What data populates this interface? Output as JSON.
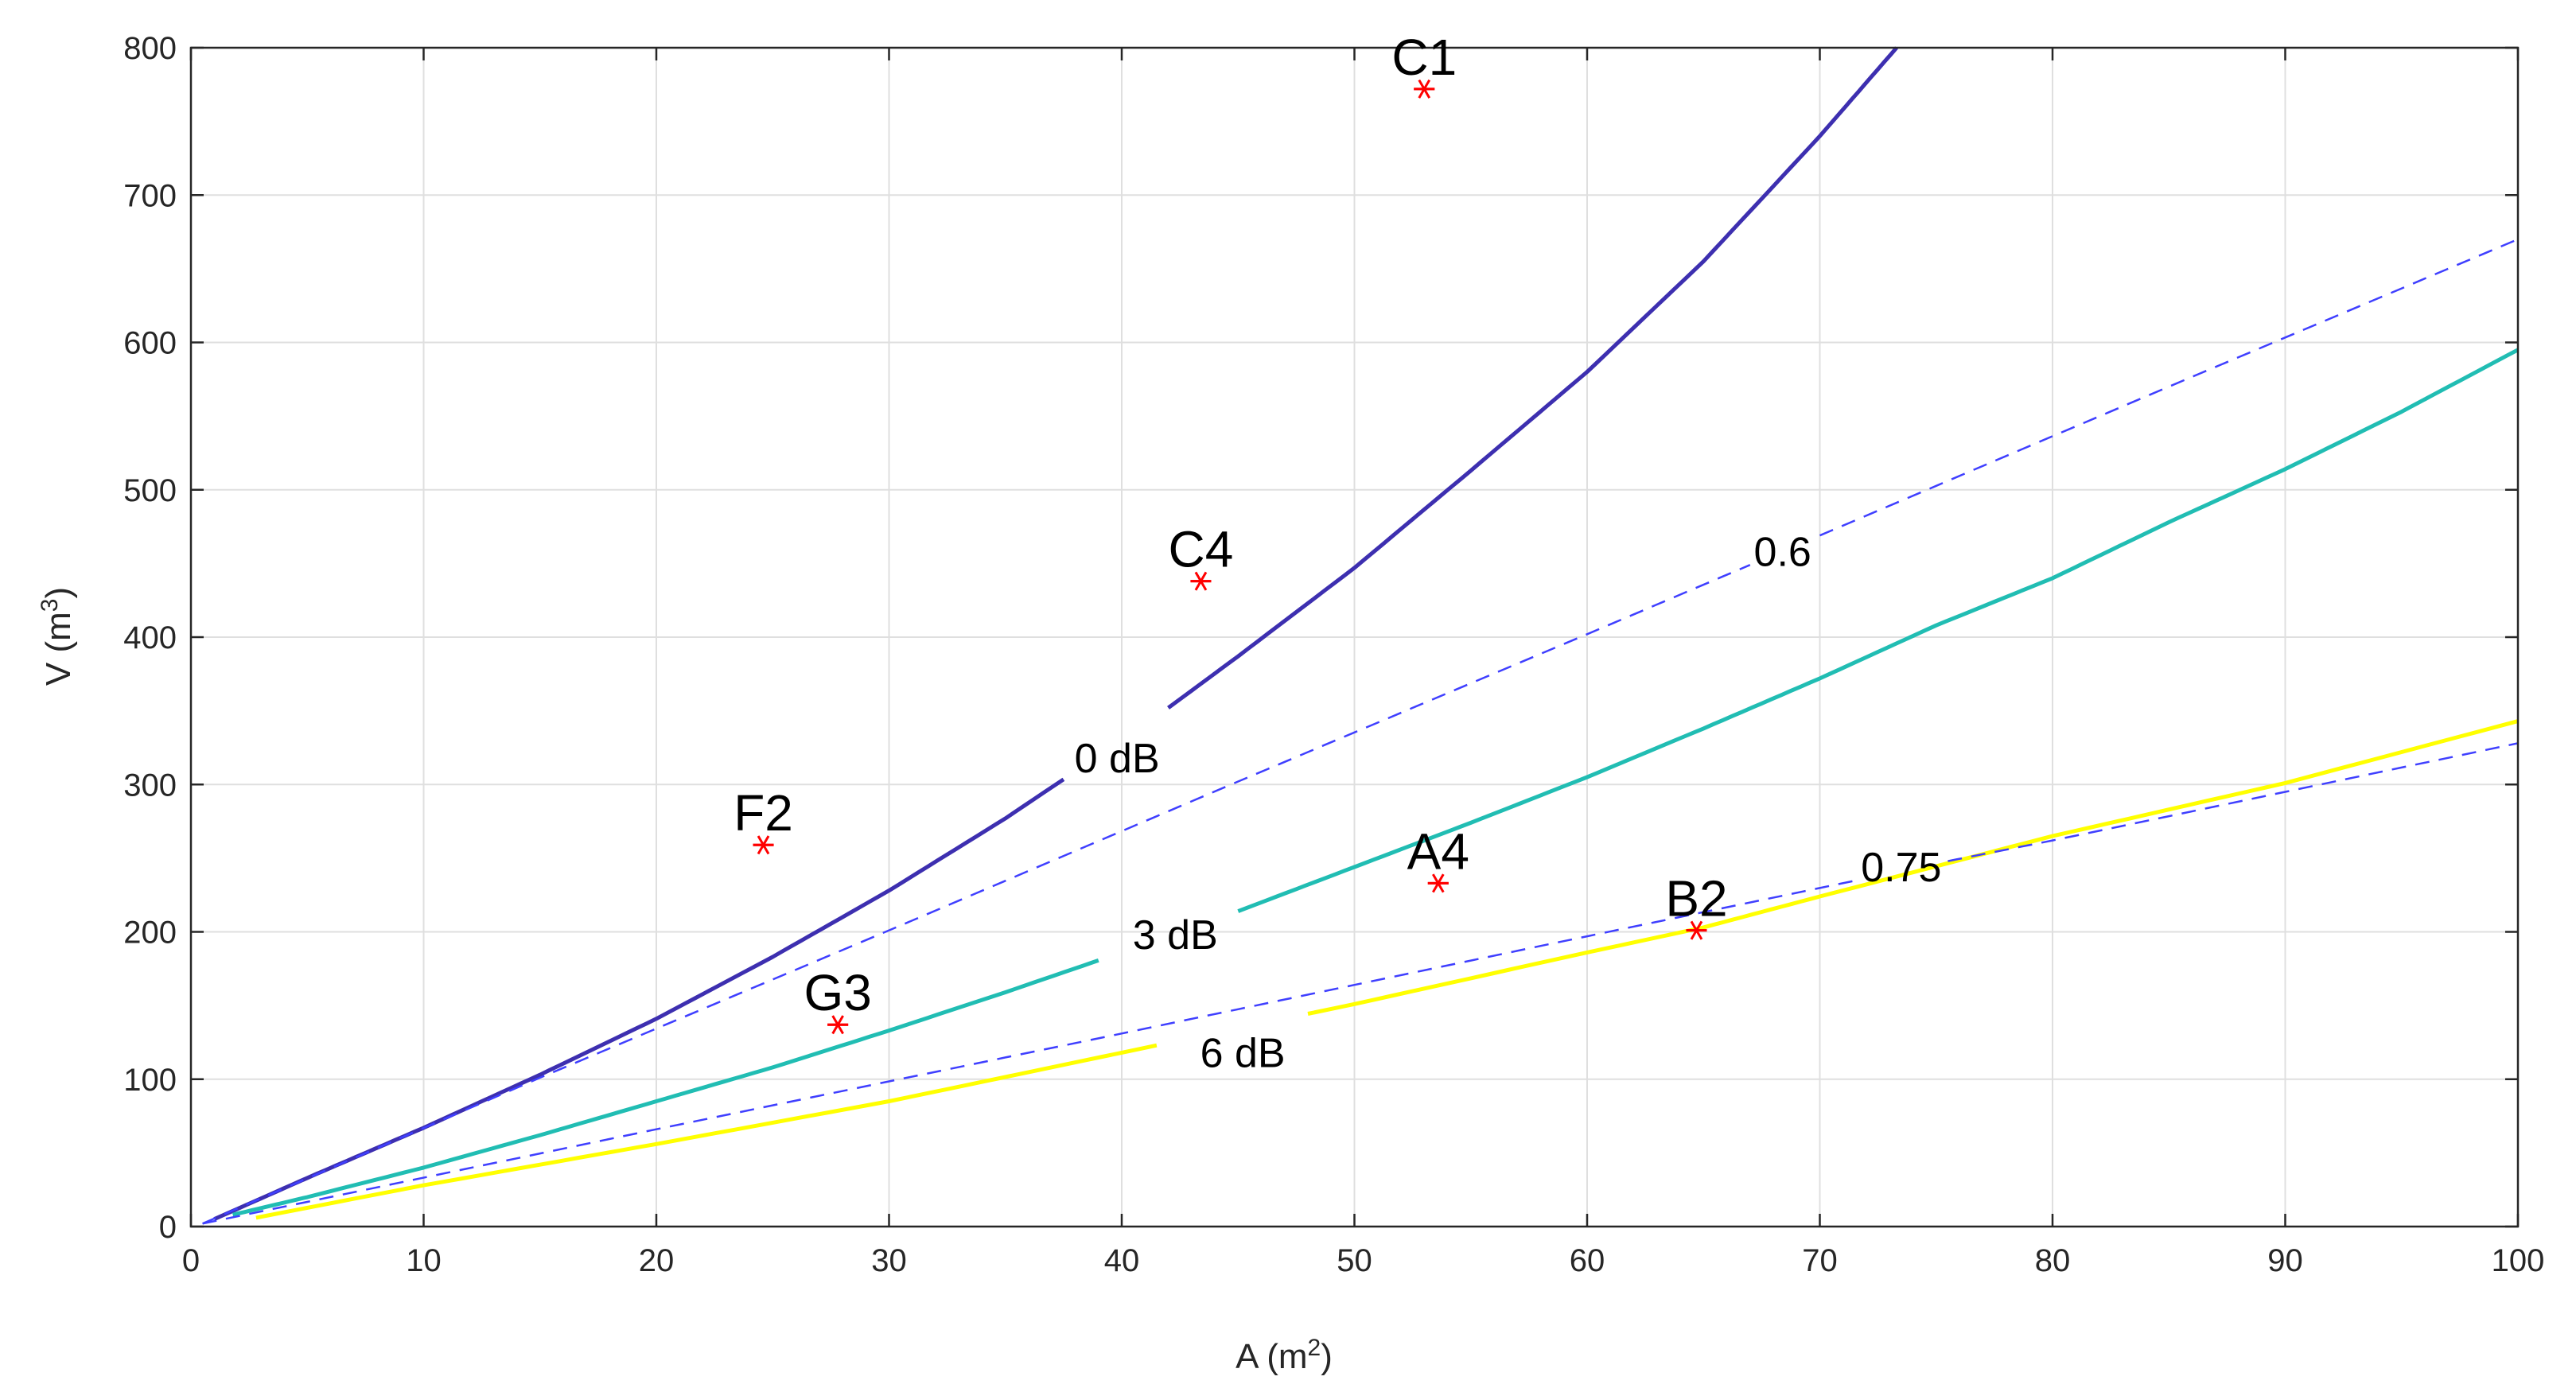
{
  "chart_data": {
    "type": "line",
    "title": "",
    "xlabel": {
      "prefix": "A (m",
      "exp": "2",
      "suffix": ")"
    },
    "ylabel": {
      "prefix": "V (m",
      "exp": "3",
      "suffix": ")"
    },
    "xlim": [
      0,
      100
    ],
    "ylim": [
      0,
      800
    ],
    "xticks": [
      0,
      10,
      20,
      30,
      40,
      50,
      60,
      70,
      80,
      90,
      100
    ],
    "yticks": [
      0,
      100,
      200,
      300,
      400,
      500,
      600,
      700,
      800
    ],
    "grid": true,
    "colors": {
      "axis": "#262626",
      "grid": "#dfdfdf",
      "points": "#ff0000",
      "ratio_lines": "#3f3fff"
    },
    "series": [
      {
        "name": "0 dB",
        "label": "0 dB",
        "color": "#3d2fb0",
        "style": "solid",
        "x": [
          1,
          5,
          10,
          15,
          20,
          25,
          30,
          35,
          40,
          42,
          45,
          50,
          55,
          60,
          65,
          70,
          73.3
        ],
        "y": [
          5,
          33,
          67,
          103,
          141,
          183,
          228,
          277,
          330,
          352,
          387,
          447,
          513,
          580,
          655,
          740,
          800
        ],
        "label_at": [
          39.8,
          318
        ],
        "gap_x": [
          37.5,
          42
        ]
      },
      {
        "name": "3 dB",
        "label": "3 dB",
        "color": "#21bdb3",
        "style": "solid",
        "x": [
          1.8,
          5,
          10,
          15,
          20,
          25,
          30,
          35,
          40,
          45,
          50,
          55,
          60,
          65,
          70,
          75,
          80,
          85,
          90,
          95,
          100
        ],
        "y": [
          8,
          20,
          40,
          62,
          85,
          108,
          133,
          159,
          186,
          214,
          244,
          274,
          305,
          338,
          372,
          408,
          440,
          478,
          514,
          553,
          595
        ],
        "label_at": [
          42.3,
          198
        ],
        "gap_x": [
          39,
          45
        ]
      },
      {
        "name": "6 dB",
        "label": "6 dB",
        "color": "#ffff00",
        "style": "solid",
        "x": [
          2.8,
          10,
          20,
          30,
          40,
          50,
          60,
          65,
          70,
          80,
          90,
          100
        ],
        "y": [
          6,
          28,
          56,
          85,
          118,
          151,
          186,
          203,
          224,
          265,
          301,
          343
        ],
        "label_at": [
          45.2,
          118
        ],
        "gap_x": [
          41.5,
          48
        ]
      },
      {
        "name": "0.6",
        "label": "0.6",
        "color": "#3f3fff",
        "style": "dashed",
        "x": [
          0.5,
          15,
          30,
          45,
          60,
          67,
          70,
          85,
          100
        ],
        "y": [
          2,
          101,
          201,
          302,
          402,
          449,
          469,
          570,
          670
        ],
        "label_at": [
          68.4,
          458
        ],
        "gap_x": [
          67,
          70
        ]
      },
      {
        "name": "0.75",
        "label": "0.75",
        "color": "#3f3fff",
        "style": "dashed",
        "x": [
          0.5,
          20,
          40,
          60,
          71.6,
          75.5,
          80,
          100
        ],
        "y": [
          2,
          66,
          131,
          197,
          235,
          248,
          262,
          328
        ],
        "label_at": [
          73.5,
          244
        ],
        "gap_x": [
          71.6,
          75.5
        ]
      }
    ],
    "points": [
      {
        "label": "C1",
        "x": 53,
        "y": 772
      },
      {
        "label": "C4",
        "x": 43.4,
        "y": 438
      },
      {
        "label": "F2",
        "x": 24.6,
        "y": 259
      },
      {
        "label": "A4",
        "x": 53.6,
        "y": 233
      },
      {
        "label": "B2",
        "x": 64.7,
        "y": 201
      },
      {
        "label": "G3",
        "x": 27.8,
        "y": 137
      }
    ]
  }
}
